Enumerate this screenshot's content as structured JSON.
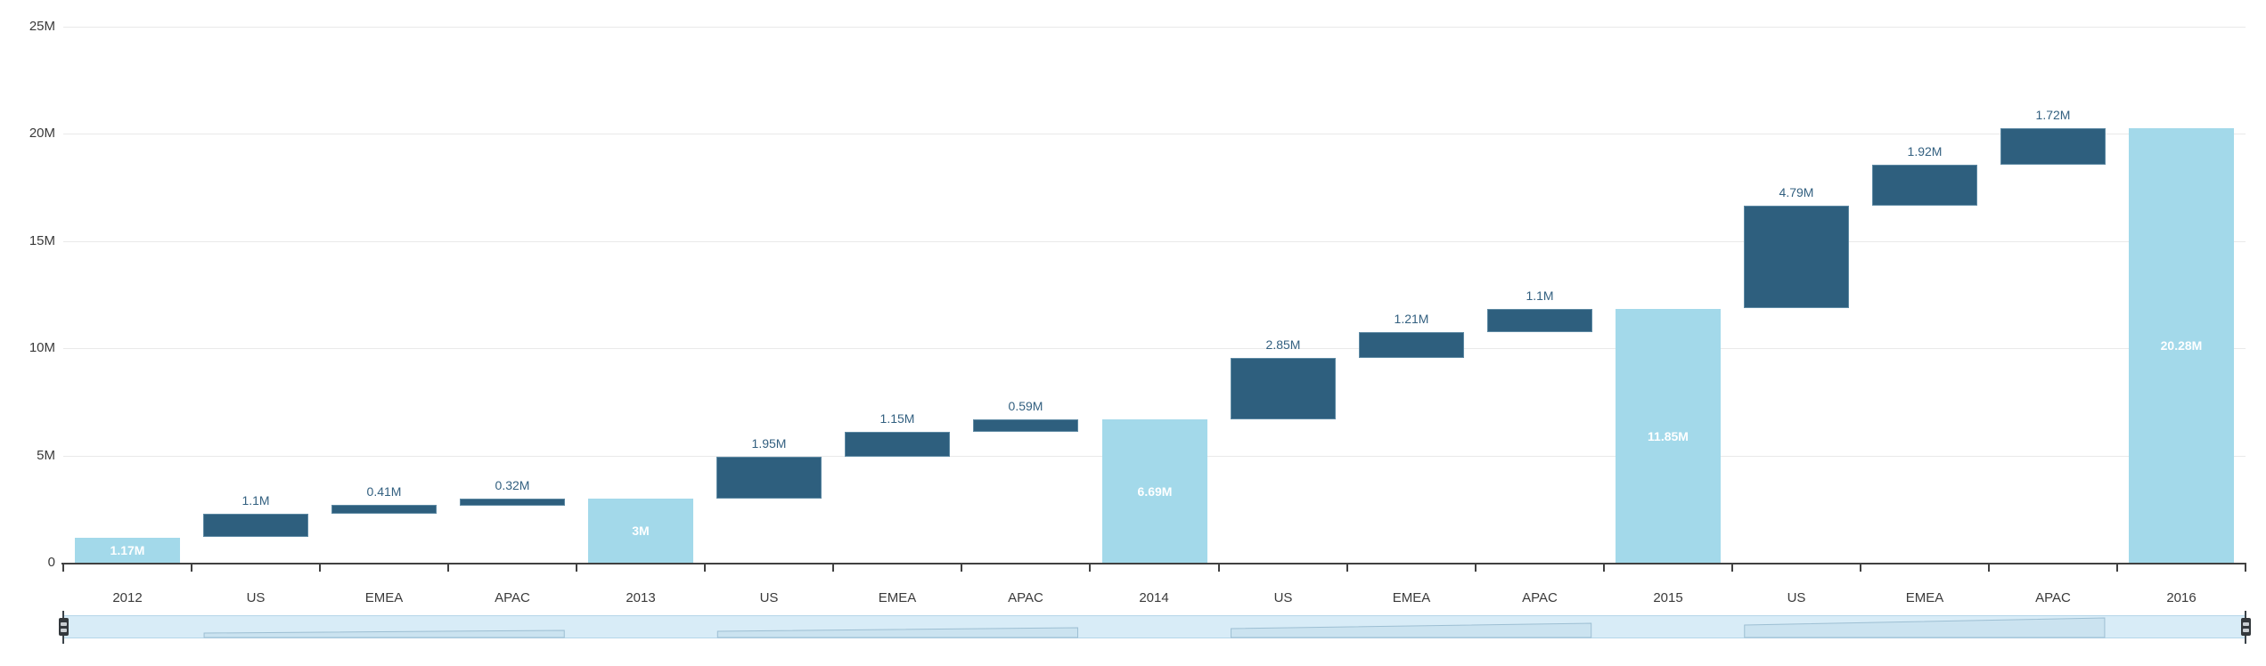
{
  "chart_data": {
    "type": "bar",
    "subtype": "waterfall",
    "title": "",
    "xlabel": "",
    "ylabel": "",
    "grid": true,
    "legend_position": "none",
    "ylim": [
      0,
      25
    ],
    "y_unit": "M",
    "y_axis_ticks": [
      "25M",
      "20M",
      "15M",
      "10M",
      "5M",
      "0"
    ],
    "y_axis_values": [
      25,
      20,
      15,
      10,
      5,
      0
    ],
    "categories": [
      "2012",
      "US",
      "EMEA",
      "APAC",
      "2013",
      "US",
      "EMEA",
      "APAC",
      "2014",
      "US",
      "EMEA",
      "APAC",
      "2015",
      "US",
      "EMEA",
      "APAC",
      "2016"
    ],
    "series": [
      {
        "category": "2012",
        "kind": "total",
        "value": 1.17,
        "label": "1.17M",
        "start": 0,
        "end": 1.17
      },
      {
        "category": "US",
        "kind": "increase",
        "value": 1.1,
        "label": "1.1M",
        "start": 1.17,
        "end": 2.27
      },
      {
        "category": "EMEA",
        "kind": "increase",
        "value": 0.41,
        "label": "0.41M",
        "start": 2.27,
        "end": 2.68
      },
      {
        "category": "APAC",
        "kind": "increase",
        "value": 0.32,
        "label": "0.32M",
        "start": 2.68,
        "end": 3.0
      },
      {
        "category": "2013",
        "kind": "total",
        "value": 3.0,
        "label": "3M",
        "start": 0,
        "end": 3.0
      },
      {
        "category": "US",
        "kind": "increase",
        "value": 1.95,
        "label": "1.95M",
        "start": 3.0,
        "end": 4.95
      },
      {
        "category": "EMEA",
        "kind": "increase",
        "value": 1.15,
        "label": "1.15M",
        "start": 4.95,
        "end": 6.1
      },
      {
        "category": "APAC",
        "kind": "increase",
        "value": 0.59,
        "label": "0.59M",
        "start": 6.1,
        "end": 6.69
      },
      {
        "category": "2014",
        "kind": "total",
        "value": 6.69,
        "label": "6.69M",
        "start": 0,
        "end": 6.69
      },
      {
        "category": "US",
        "kind": "increase",
        "value": 2.85,
        "label": "2.85M",
        "start": 6.69,
        "end": 9.54
      },
      {
        "category": "EMEA",
        "kind": "increase",
        "value": 1.21,
        "label": "1.21M",
        "start": 9.54,
        "end": 10.75
      },
      {
        "category": "APAC",
        "kind": "increase",
        "value": 1.1,
        "label": "1.1M",
        "start": 10.75,
        "end": 11.85
      },
      {
        "category": "2015",
        "kind": "total",
        "value": 11.85,
        "label": "11.85M",
        "start": 0,
        "end": 11.85
      },
      {
        "category": "US",
        "kind": "increase",
        "value": 4.79,
        "label": "4.79M",
        "start": 11.85,
        "end": 16.64
      },
      {
        "category": "EMEA",
        "kind": "increase",
        "value": 1.92,
        "label": "1.92M",
        "start": 16.64,
        "end": 18.56
      },
      {
        "category": "APAC",
        "kind": "increase",
        "value": 1.72,
        "label": "1.72M",
        "start": 18.56,
        "end": 20.28
      },
      {
        "category": "2016",
        "kind": "total",
        "value": 20.28,
        "label": "20.28M",
        "start": 0,
        "end": 20.28
      }
    ]
  },
  "colors": {
    "total_bar": "#a3d9ea",
    "increase_bar": "#2e5f7e",
    "increase_bar_border": "#5d89a3",
    "total_label_text": "#ffffff",
    "increase_label_text": "#336080",
    "axis_text": "#3a3a3a",
    "gridline": "#e9e9e9",
    "axis_line": "#414141",
    "navigator_fill": "#d8ecf7",
    "navigator_border": "#b5d6e9",
    "navigator_preview_outline": "#9dbfd3",
    "handle_grip": "#33383c",
    "handle_line": "#3c444a"
  }
}
